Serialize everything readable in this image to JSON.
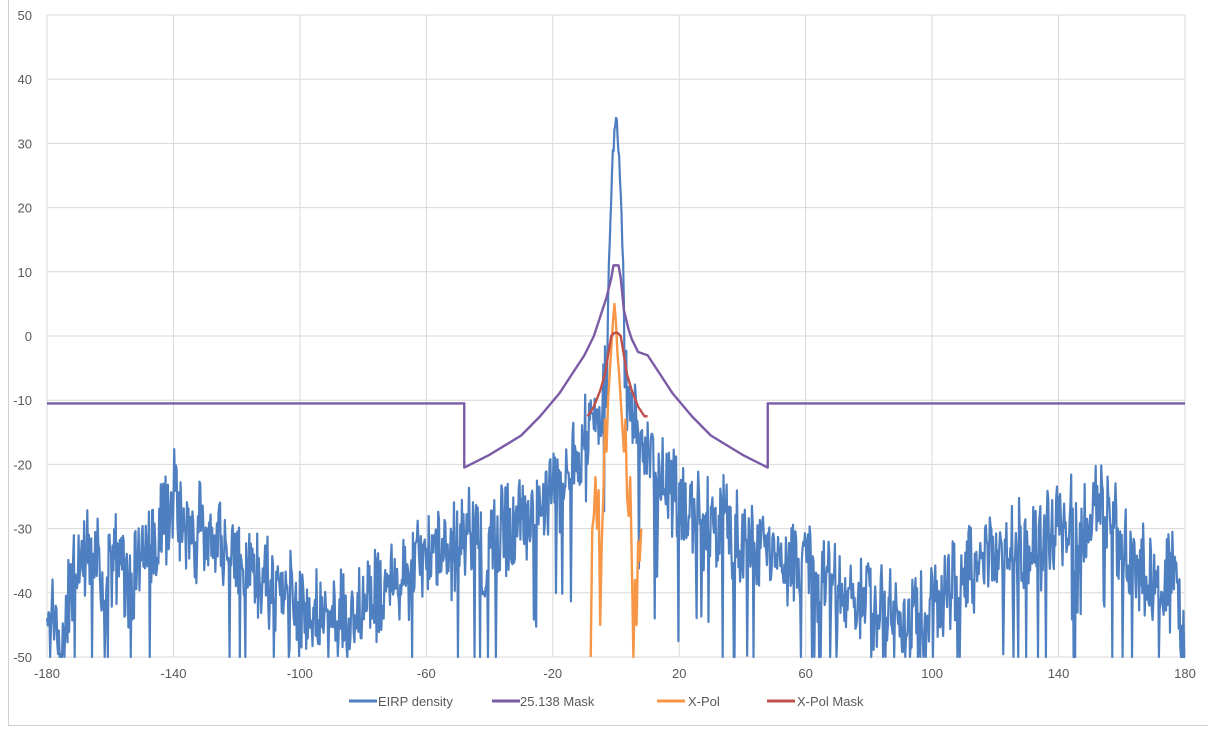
{
  "chart_data": {
    "type": "line",
    "title": "",
    "xlabel": "",
    "ylabel": "",
    "xlim": [
      -180,
      180
    ],
    "ylim": [
      -50,
      50
    ],
    "x_ticks": [
      -180,
      -140,
      -100,
      -60,
      -20,
      20,
      60,
      100,
      140,
      180
    ],
    "y_ticks": [
      -50,
      -40,
      -30,
      -20,
      -10,
      0,
      10,
      20,
      30,
      40,
      50
    ],
    "grid": true,
    "legend_position": "bottom",
    "series": [
      {
        "name": "EIRP density",
        "color": "#4e7fc0",
        "style": "noisy-envelope",
        "envelope": [
          [
            -180,
            -40
          ],
          [
            -178,
            -37
          ],
          [
            -175,
            -42
          ],
          [
            -172,
            -30
          ],
          [
            -168,
            -28
          ],
          [
            -165,
            -27
          ],
          [
            -162,
            -32
          ],
          [
            -158,
            -28
          ],
          [
            -155,
            -33
          ],
          [
            -150,
            -27
          ],
          [
            -145,
            -25
          ],
          [
            -140,
            -20
          ],
          [
            -136,
            -24
          ],
          [
            -130,
            -26
          ],
          [
            -125,
            -27
          ],
          [
            -120,
            -28
          ],
          [
            -115,
            -30
          ],
          [
            -110,
            -33
          ],
          [
            -105,
            -35
          ],
          [
            -100,
            -36
          ],
          [
            -95,
            -38
          ],
          [
            -90,
            -37
          ],
          [
            -85,
            -38
          ],
          [
            -80,
            -36
          ],
          [
            -75,
            -34
          ],
          [
            -70,
            -32
          ],
          [
            -65,
            -30
          ],
          [
            -60,
            -29
          ],
          [
            -55,
            -28
          ],
          [
            -50,
            -26
          ],
          [
            -46,
            -24
          ],
          [
            -42,
            -28
          ],
          [
            -38,
            -26
          ],
          [
            -34,
            -24
          ],
          [
            -30,
            -23
          ],
          [
            -26,
            -22
          ],
          [
            -22,
            -20
          ],
          [
            -18,
            -18
          ],
          [
            -15,
            -16
          ],
          [
            -12,
            -14
          ],
          [
            -9,
            -11
          ],
          [
            -7,
            -8
          ],
          [
            -5,
            -6
          ],
          [
            -3,
            0
          ],
          [
            -2,
            15
          ],
          [
            -1,
            28
          ],
          [
            0,
            34.5
          ],
          [
            1,
            28
          ],
          [
            2,
            15
          ],
          [
            3,
            0
          ],
          [
            5,
            -6
          ],
          [
            7,
            -8
          ],
          [
            9,
            -11
          ],
          [
            12,
            -14
          ],
          [
            15,
            -16
          ],
          [
            18,
            -18
          ],
          [
            22,
            -20
          ],
          [
            26,
            -22
          ],
          [
            30,
            -23
          ],
          [
            34,
            -24
          ],
          [
            38,
            -26
          ],
          [
            42,
            -28
          ],
          [
            46,
            -26
          ],
          [
            50,
            -27
          ],
          [
            55,
            -29
          ],
          [
            60,
            -30
          ],
          [
            65,
            -32
          ],
          [
            70,
            -33
          ],
          [
            75,
            -34
          ],
          [
            80,
            -36
          ],
          [
            85,
            -37
          ],
          [
            90,
            -38
          ],
          [
            95,
            -37
          ],
          [
            100,
            -36
          ],
          [
            105,
            -34
          ],
          [
            110,
            -32
          ],
          [
            115,
            -30
          ],
          [
            120,
            -29
          ],
          [
            125,
            -28
          ],
          [
            130,
            -27
          ],
          [
            135,
            -26
          ],
          [
            140,
            -25
          ],
          [
            145,
            -23
          ],
          [
            150,
            -22
          ],
          [
            153,
            -20
          ],
          [
            158,
            -24
          ],
          [
            162,
            -28
          ],
          [
            166,
            -30
          ],
          [
            170,
            -32
          ],
          [
            174,
            -34
          ],
          [
            177,
            -30
          ],
          [
            180,
            -44
          ]
        ]
      },
      {
        "name": "25.138 Mask",
        "color": "#7a5ba6",
        "points": [
          [
            -180,
            -10.5
          ],
          [
            -48,
            -10.5
          ],
          [
            -48,
            -20.5
          ],
          [
            -40,
            -18.5
          ],
          [
            -30,
            -15.5
          ],
          [
            -24,
            -12.5
          ],
          [
            -18,
            -9
          ],
          [
            -14,
            -6
          ],
          [
            -10,
            -3
          ],
          [
            -7,
            0
          ],
          [
            -5,
            3
          ],
          [
            -3,
            6
          ],
          [
            -1.5,
            9
          ],
          [
            -0.8,
            11
          ],
          [
            0.8,
            11
          ],
          [
            1.5,
            9
          ],
          [
            2.5,
            4
          ],
          [
            4,
            1
          ],
          [
            5,
            -0.5
          ],
          [
            7,
            -2.5
          ],
          [
            10,
            -3
          ],
          [
            14,
            -6
          ],
          [
            18,
            -9
          ],
          [
            24,
            -12.5
          ],
          [
            30,
            -15.5
          ],
          [
            40,
            -18.5
          ],
          [
            48,
            -20.5
          ],
          [
            48,
            -10.5
          ],
          [
            180,
            -10.5
          ]
        ]
      },
      {
        "name": "X-Pol",
        "color": "#f79646",
        "points": [
          [
            -8,
            -50
          ],
          [
            -7.5,
            -30
          ],
          [
            -7,
            -28
          ],
          [
            -6.5,
            -22
          ],
          [
            -6,
            -30
          ],
          [
            -5.5,
            -24
          ],
          [
            -5,
            -45
          ],
          [
            -4.5,
            -32
          ],
          [
            -4,
            -25
          ],
          [
            -3.5,
            -13
          ],
          [
            -3,
            -18
          ],
          [
            -2.5,
            -10
          ],
          [
            -2,
            -6
          ],
          [
            -1.5,
            -2
          ],
          [
            -1,
            2
          ],
          [
            -0.5,
            5
          ],
          [
            0,
            2
          ],
          [
            0.5,
            -3
          ],
          [
            1,
            -6
          ],
          [
            1.5,
            -10
          ],
          [
            2,
            -14
          ],
          [
            2.5,
            -18
          ],
          [
            3,
            -13
          ],
          [
            3.5,
            -25
          ],
          [
            4,
            -28
          ],
          [
            4.5,
            -22
          ],
          [
            5,
            -35
          ],
          [
            5.5,
            -50
          ],
          [
            6,
            -38
          ],
          [
            6.5,
            -45
          ],
          [
            7,
            -32
          ],
          [
            7.5,
            -35
          ],
          [
            8,
            -30
          ]
        ]
      },
      {
        "name": "X-Pol Mask",
        "color": "#c0504d",
        "points": [
          [
            -9,
            -12.5
          ],
          [
            -7,
            -11
          ],
          [
            -5,
            -8.5
          ],
          [
            -3.5,
            -6
          ],
          [
            -2.5,
            -3
          ],
          [
            -1.5,
            0
          ],
          [
            -0.5,
            0.5
          ],
          [
            0.5,
            0.5
          ],
          [
            1.5,
            0
          ],
          [
            2.5,
            -3
          ],
          [
            3.5,
            -6
          ],
          [
            5,
            -8.5
          ],
          [
            7,
            -11
          ],
          [
            9,
            -12.5
          ],
          [
            10,
            -12.5
          ]
        ]
      }
    ]
  }
}
